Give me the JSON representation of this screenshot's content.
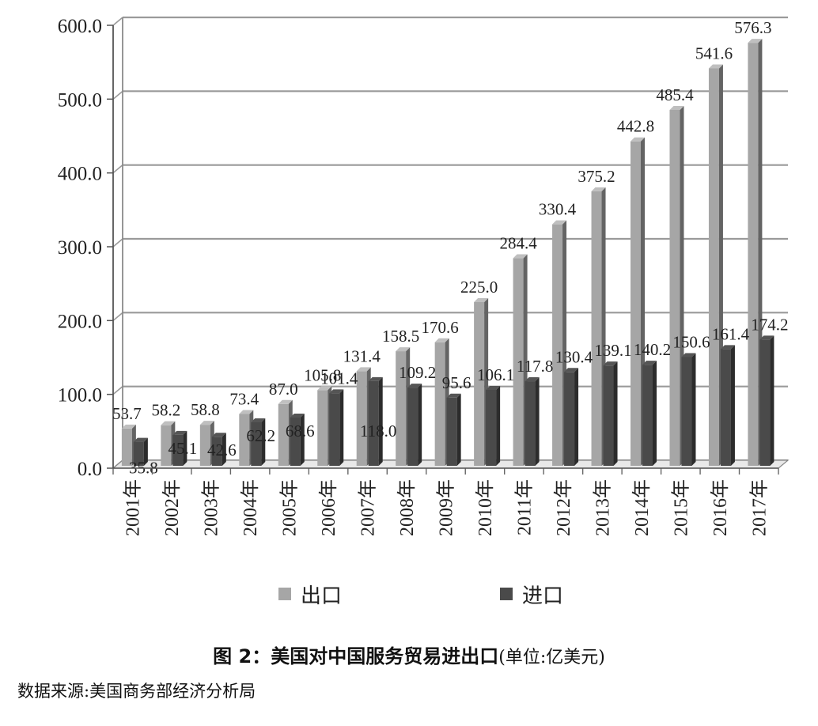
{
  "chart_data": {
    "type": "bar",
    "categories": [
      "2001年",
      "2002年",
      "2003年",
      "2004年",
      "2005年",
      "2006年",
      "2007年",
      "2008年",
      "2009年",
      "2010年",
      "2011年",
      "2012年",
      "2013年",
      "2014年",
      "2015年",
      "2016年",
      "2017年"
    ],
    "series": [
      {
        "name": "出口",
        "color": "#a6a6a6",
        "values": [
          53.7,
          58.2,
          58.8,
          73.4,
          87.0,
          105.8,
          131.4,
          158.5,
          170.6,
          225.0,
          284.4,
          330.4,
          375.2,
          442.8,
          485.4,
          541.6,
          576.3
        ],
        "labels": [
          "53.7",
          "58.2",
          "58.8",
          "73.4",
          "87.0",
          "105.8",
          "131.4",
          "158.5",
          "170.6",
          "225.0",
          "284.4",
          "330.4",
          "375.2",
          "442.8",
          "485.4",
          "541.6",
          "576.3"
        ]
      },
      {
        "name": "进口",
        "color": "#4a4a4a",
        "values": [
          35.8,
          45.1,
          42.6,
          62.2,
          68.6,
          101.4,
          118.0,
          109.2,
          95.6,
          106.1,
          117.8,
          130.4,
          139.1,
          140.2,
          150.6,
          161.4,
          174.2
        ],
        "labels": [
          "35.8",
          "45.1",
          "42.6",
          "62.2",
          "68.6",
          "101.4",
          "118.0",
          "109.2",
          "95.6",
          "106.1",
          "117.8",
          "130.4",
          "139.1",
          "140.2",
          "150.6",
          "161.4",
          "174.2"
        ]
      }
    ],
    "yticks": [
      "0.0",
      "100.0",
      "200.0",
      "300.0",
      "400.0",
      "500.0",
      "600.0"
    ],
    "ylim": [
      0,
      600
    ],
    "grid": true,
    "legend": "bottom",
    "caption_title": "图 2：美国对中国服务贸易进出口",
    "caption_unit": "(单位:亿美元)",
    "source": "数据来源:美国商务部经济分析局"
  }
}
